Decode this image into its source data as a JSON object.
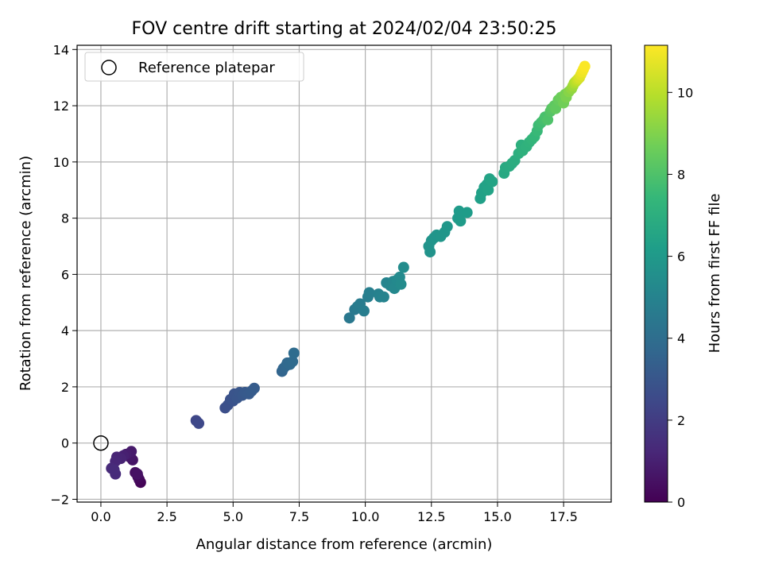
{
  "chart_data": {
    "type": "scatter",
    "title": "FOV centre drift starting at 2024/02/04 23:50:25",
    "xlabel": "Angular distance from reference (arcmin)",
    "ylabel": "Rotation from reference (arcmin)",
    "xlim": [
      -0.9,
      19.3
    ],
    "ylim": [
      -2.1,
      14.15
    ],
    "xticks": [
      0.0,
      2.5,
      5.0,
      7.5,
      10.0,
      12.5,
      15.0,
      17.5
    ],
    "xtick_labels": [
      "0.0",
      "2.5",
      "5.0",
      "7.5",
      "10.0",
      "12.5",
      "15.0",
      "17.5"
    ],
    "yticks": [
      -2,
      0,
      2,
      4,
      6,
      8,
      10,
      12,
      14
    ],
    "ytick_labels": [
      "−2",
      "0",
      "2",
      "4",
      "6",
      "8",
      "10",
      "12",
      "14"
    ],
    "grid": true,
    "legend": {
      "position": "top-left",
      "entries": [
        {
          "label": "Reference platepar",
          "marker": "open-circle"
        }
      ]
    },
    "reference_point": {
      "x": 0.0,
      "y": 0.0
    },
    "colorbar": {
      "label": "Hours from first FF file",
      "colormap": "viridis",
      "range": [
        0,
        11.15
      ],
      "ticks": [
        0,
        2,
        4,
        6,
        8,
        10
      ],
      "tick_labels": [
        "0",
        "2",
        "4",
        "6",
        "8",
        "10"
      ],
      "colors": [
        "#440154",
        "#482878",
        "#3e4989",
        "#31688e",
        "#26828e",
        "#1f9e89",
        "#35b779",
        "#6ece58",
        "#b5de2b",
        "#fde725"
      ]
    },
    "series": [
      {
        "points": [
          [
            1.5,
            -1.4,
            0.1
          ],
          [
            1.45,
            -1.3,
            0.2
          ],
          [
            1.4,
            -1.2,
            0.3
          ],
          [
            1.3,
            -1.05,
            0.4
          ],
          [
            1.38,
            -1.1,
            0.5
          ],
          [
            1.2,
            -0.6,
            0.6
          ],
          [
            1.1,
            -0.5,
            0.7
          ],
          [
            1.15,
            -0.3,
            0.8
          ],
          [
            0.95,
            -0.4,
            0.9
          ],
          [
            0.85,
            -0.45,
            1.0
          ],
          [
            0.75,
            -0.55,
            1.1
          ],
          [
            0.6,
            -0.5,
            1.15
          ],
          [
            0.55,
            -0.65,
            1.2
          ],
          [
            0.4,
            -0.9,
            1.3
          ],
          [
            0.55,
            -1.1,
            1.35
          ],
          [
            0.5,
            -0.95,
            1.4
          ],
          [
            3.6,
            0.8,
            2.4
          ],
          [
            3.7,
            0.7,
            2.45
          ],
          [
            4.7,
            1.25,
            2.7
          ],
          [
            4.8,
            1.35,
            2.75
          ],
          [
            4.9,
            1.55,
            2.8
          ],
          [
            5.0,
            1.5,
            2.85
          ],
          [
            5.05,
            1.75,
            2.9
          ],
          [
            5.15,
            1.6,
            2.95
          ],
          [
            5.25,
            1.8,
            3.0
          ],
          [
            5.35,
            1.7,
            3.05
          ],
          [
            5.45,
            1.8,
            3.1
          ],
          [
            5.6,
            1.75,
            3.15
          ],
          [
            5.7,
            1.85,
            3.2
          ],
          [
            5.8,
            1.95,
            3.25
          ],
          [
            6.85,
            2.55,
            3.6
          ],
          [
            6.9,
            2.65,
            3.65
          ],
          [
            7.0,
            2.75,
            3.7
          ],
          [
            7.05,
            2.85,
            3.75
          ],
          [
            7.15,
            2.8,
            3.8
          ],
          [
            7.25,
            2.9,
            3.85
          ],
          [
            7.3,
            3.2,
            3.9
          ],
          [
            9.4,
            4.45,
            4.5
          ],
          [
            9.6,
            4.75,
            4.55
          ],
          [
            9.7,
            4.85,
            4.6
          ],
          [
            9.8,
            4.95,
            4.65
          ],
          [
            9.95,
            4.7,
            4.7
          ],
          [
            10.1,
            5.2,
            4.75
          ],
          [
            10.15,
            5.35,
            4.8
          ],
          [
            10.5,
            5.3,
            4.9
          ],
          [
            10.55,
            5.2,
            4.95
          ],
          [
            10.7,
            5.2,
            5.0
          ],
          [
            10.8,
            5.7,
            5.05
          ],
          [
            10.95,
            5.6,
            5.1
          ],
          [
            11.05,
            5.75,
            5.15
          ],
          [
            11.1,
            5.5,
            5.2
          ],
          [
            11.2,
            5.8,
            5.25
          ],
          [
            11.3,
            5.9,
            5.3
          ],
          [
            11.35,
            5.65,
            5.35
          ],
          [
            11.45,
            6.25,
            5.4
          ],
          [
            12.4,
            7.0,
            5.7
          ],
          [
            12.45,
            6.8,
            5.72
          ],
          [
            12.5,
            7.2,
            5.75
          ],
          [
            12.6,
            7.3,
            5.78
          ],
          [
            12.7,
            7.4,
            5.8
          ],
          [
            12.85,
            7.35,
            5.83
          ],
          [
            13.0,
            7.5,
            5.86
          ],
          [
            13.1,
            7.7,
            5.9
          ],
          [
            13.5,
            8.0,
            6.0
          ],
          [
            13.55,
            8.25,
            6.05
          ],
          [
            13.6,
            7.9,
            6.08
          ],
          [
            13.85,
            8.2,
            6.12
          ],
          [
            14.35,
            8.7,
            6.3
          ],
          [
            14.4,
            8.9,
            6.33
          ],
          [
            14.5,
            9.1,
            6.36
          ],
          [
            14.6,
            9.2,
            6.4
          ],
          [
            14.65,
            9.0,
            6.43
          ],
          [
            14.7,
            9.4,
            6.46
          ],
          [
            14.8,
            9.3,
            6.5
          ],
          [
            15.25,
            9.6,
            6.7
          ],
          [
            15.3,
            9.8,
            6.75
          ],
          [
            15.45,
            9.85,
            6.8
          ],
          [
            15.55,
            9.95,
            6.85
          ],
          [
            15.65,
            10.05,
            6.9
          ],
          [
            15.8,
            10.3,
            7.0
          ],
          [
            15.9,
            10.6,
            7.05
          ],
          [
            15.95,
            10.4,
            7.1
          ],
          [
            16.1,
            10.55,
            7.15
          ],
          [
            16.2,
            10.7,
            7.2
          ],
          [
            16.3,
            10.8,
            7.3
          ],
          [
            16.4,
            10.9,
            7.4
          ],
          [
            16.5,
            11.1,
            7.5
          ],
          [
            16.55,
            11.3,
            7.6
          ],
          [
            16.65,
            11.4,
            7.7
          ],
          [
            16.75,
            11.5,
            7.8
          ],
          [
            16.8,
            11.6,
            7.9
          ],
          [
            16.9,
            11.5,
            8.0
          ],
          [
            17.0,
            11.8,
            8.1
          ],
          [
            17.05,
            11.9,
            8.2
          ],
          [
            17.15,
            12.0,
            8.3
          ],
          [
            17.2,
            11.9,
            8.4
          ],
          [
            17.3,
            12.2,
            8.5
          ],
          [
            17.4,
            12.3,
            8.6
          ],
          [
            17.5,
            12.1,
            8.7
          ],
          [
            17.55,
            12.4,
            8.8
          ],
          [
            17.6,
            12.3,
            8.9
          ],
          [
            17.7,
            12.5,
            9.1
          ],
          [
            17.8,
            12.6,
            9.3
          ],
          [
            17.85,
            12.7,
            9.5
          ],
          [
            17.9,
            12.8,
            9.7
          ],
          [
            17.95,
            12.85,
            9.9
          ],
          [
            18.0,
            12.9,
            10.1
          ],
          [
            18.05,
            12.95,
            10.3
          ],
          [
            18.1,
            13.0,
            10.5
          ],
          [
            18.15,
            13.1,
            10.7
          ],
          [
            18.2,
            13.2,
            10.9
          ],
          [
            18.25,
            13.3,
            11.0
          ],
          [
            18.3,
            13.4,
            11.1
          ]
        ]
      }
    ]
  }
}
